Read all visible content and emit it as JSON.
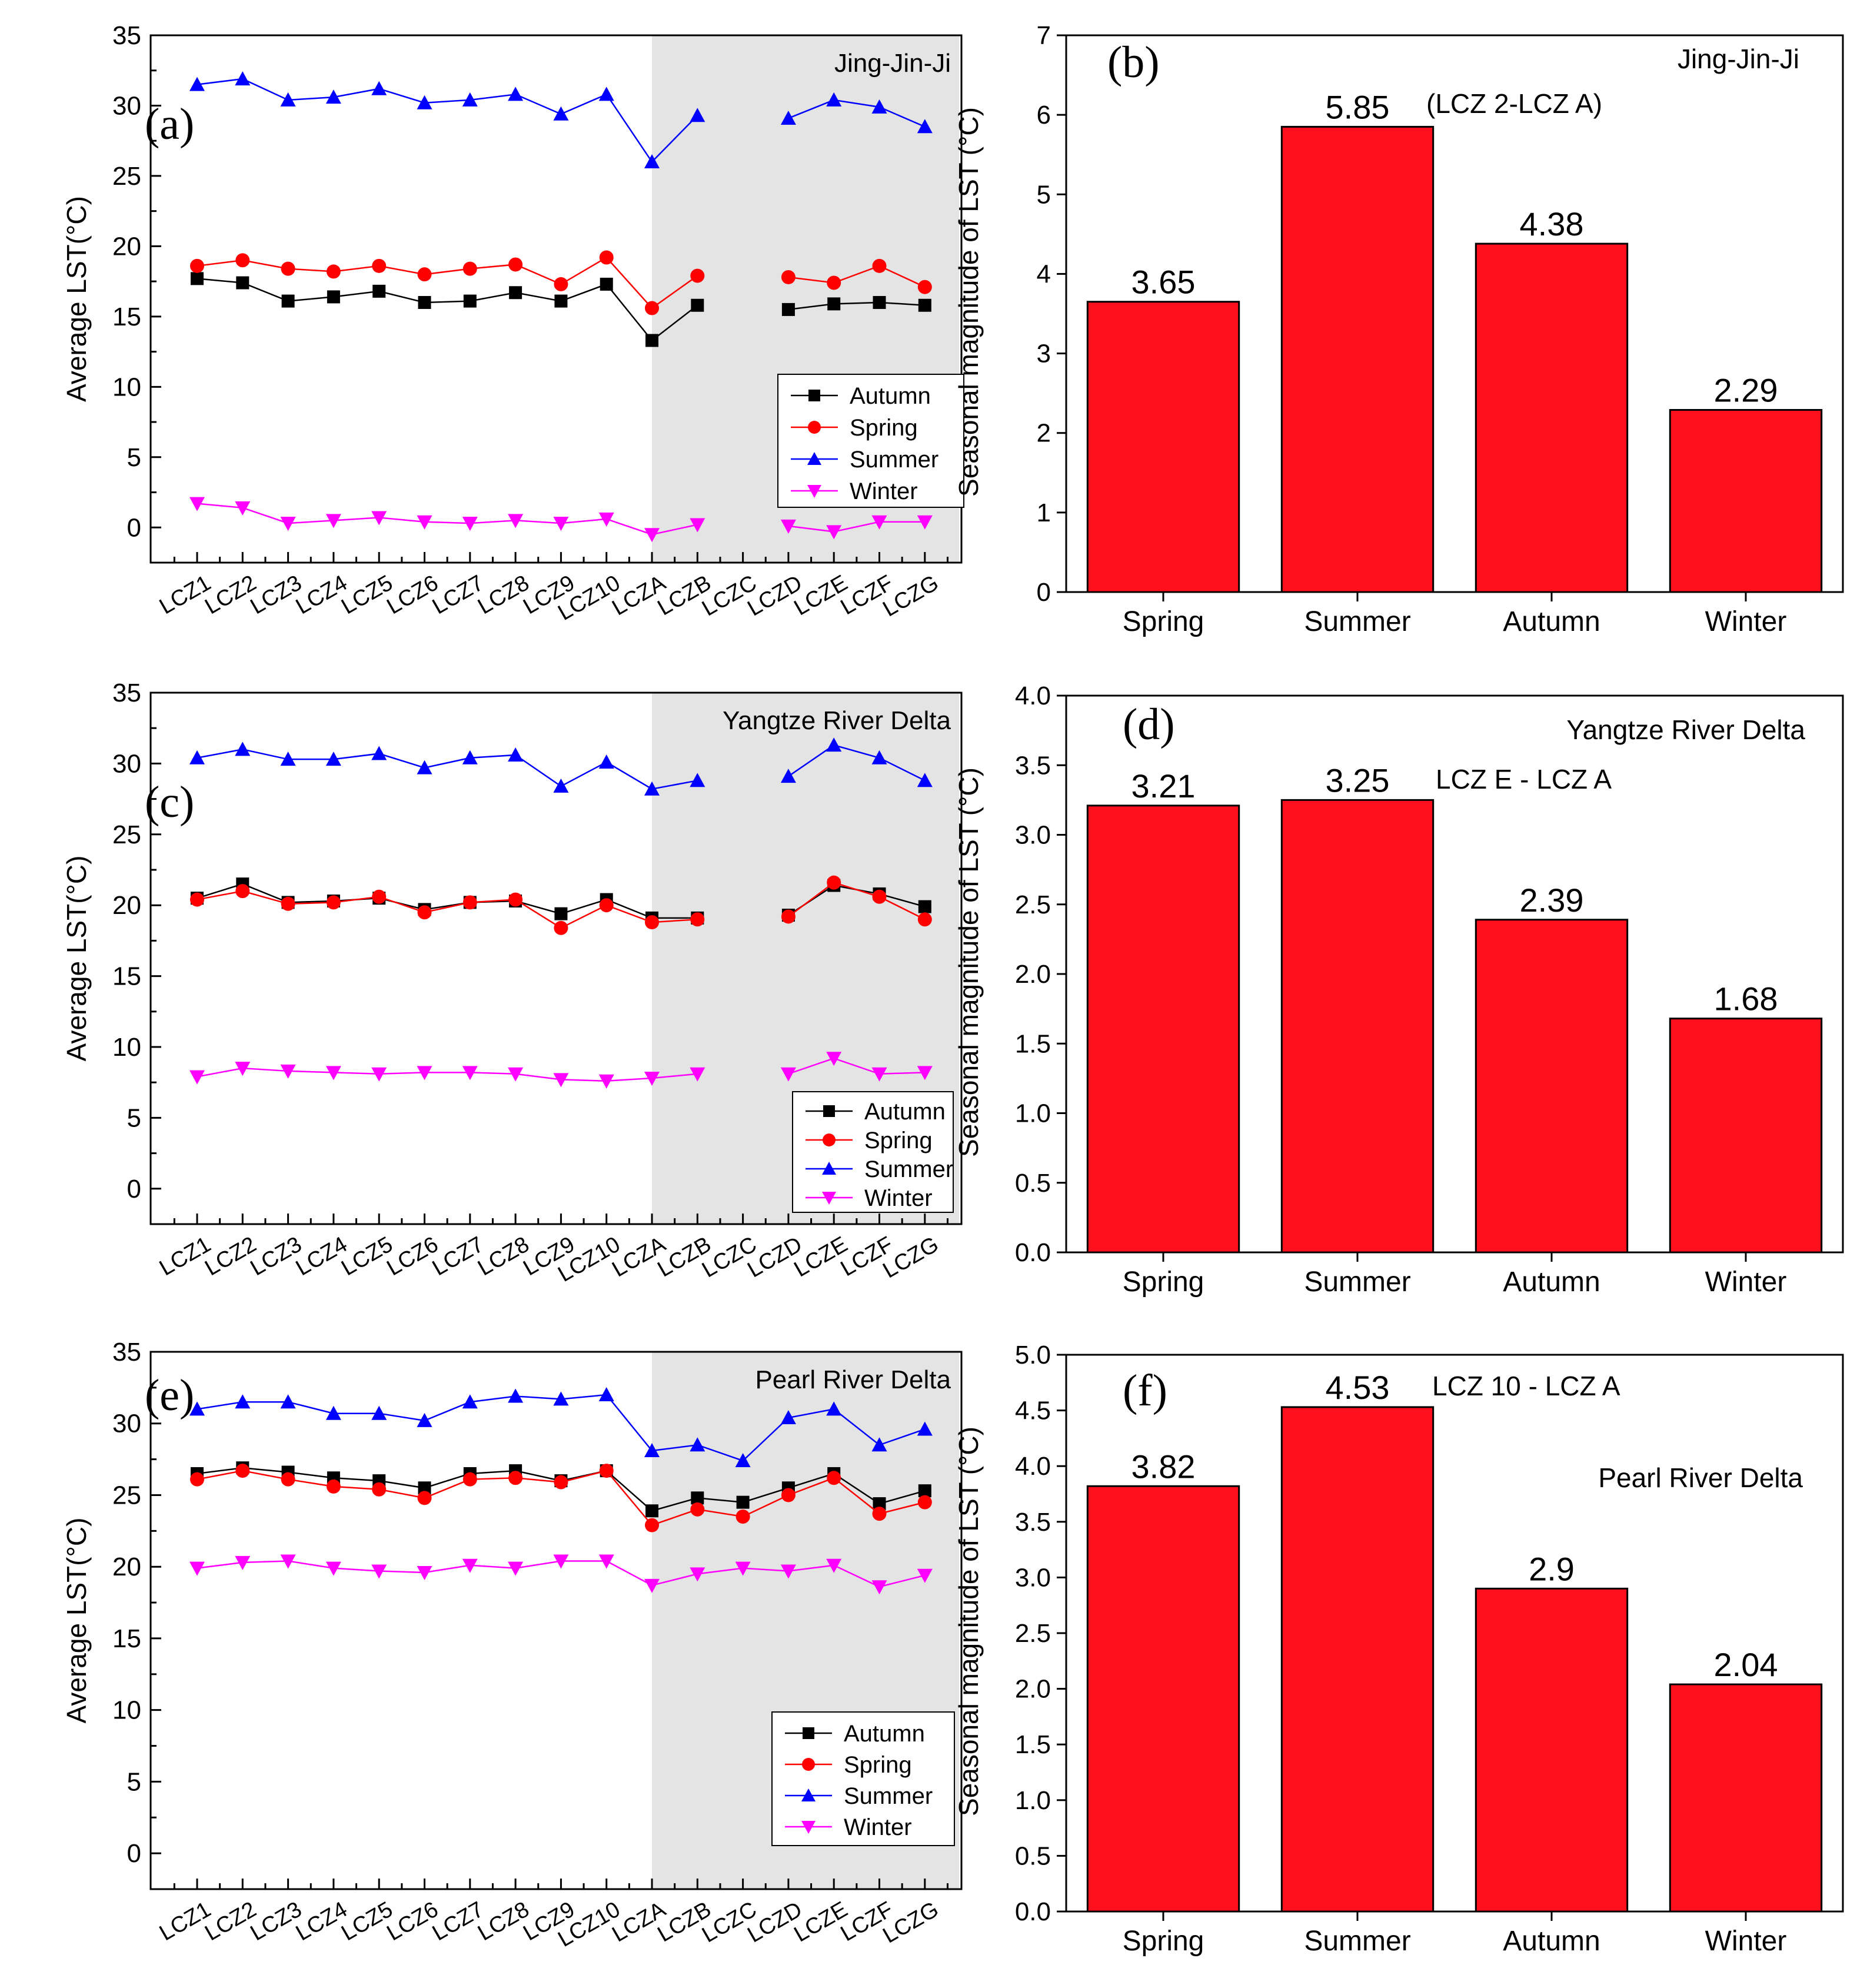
{
  "colors": {
    "autumn": "#000000",
    "spring": "#ff0000",
    "summer": "#0000ff",
    "winter": "#ff00ff",
    "bar": "#ff101c",
    "shade": "#e4e4e4"
  },
  "chart_data": [
    {
      "panel": "(a)",
      "type": "line",
      "title": "Jing-Jin-Ji",
      "xlabel": "",
      "ylabel": "Average LST(°C)",
      "ylim": [
        -2.5,
        35
      ],
      "yticks": [
        "0",
        "5",
        "10",
        "15",
        "20",
        "25",
        "30",
        "35"
      ],
      "categories": [
        "LCZ1",
        "LCZ2",
        "LCZ3",
        "LCZ4",
        "LCZ5",
        "LCZ6",
        "LCZ7",
        "LCZ8",
        "LCZ9",
        "LCZ10",
        "LCZA",
        "LCZB",
        "LCZC",
        "LCZD",
        "LCZE",
        "LCZF",
        "LCZG"
      ],
      "shaded_from": "LCZA",
      "legend": "bottom-right",
      "series": [
        {
          "name": "Autumn",
          "values": [
            17.7,
            17.4,
            16.1,
            16.4,
            16.8,
            16.0,
            16.1,
            16.7,
            16.1,
            17.3,
            13.3,
            15.8,
            null,
            15.5,
            15.9,
            16.0,
            15.8
          ]
        },
        {
          "name": "Spring",
          "values": [
            18.6,
            19.0,
            18.4,
            18.2,
            18.6,
            18.0,
            18.4,
            18.7,
            17.3,
            19.2,
            15.6,
            17.9,
            null,
            17.8,
            17.4,
            18.6,
            17.1
          ]
        },
        {
          "name": "Summer",
          "values": [
            31.5,
            31.9,
            30.4,
            30.6,
            31.2,
            30.2,
            30.4,
            30.8,
            29.4,
            30.8,
            26.0,
            29.3,
            null,
            29.1,
            30.4,
            29.9,
            28.5
          ]
        },
        {
          "name": "Winter",
          "values": [
            1.7,
            1.4,
            0.3,
            0.5,
            0.7,
            0.4,
            0.3,
            0.5,
            0.3,
            0.6,
            -0.5,
            0.2,
            null,
            0.1,
            -0.3,
            0.4,
            0.4
          ]
        }
      ]
    },
    {
      "panel": "(b)",
      "type": "bar",
      "title": "Jing-Jin-Ji",
      "annotation": "(LCZ 2-LCZ A)",
      "xlabel": "",
      "ylabel": "Seasonal magnitude of LST (°C)",
      "ylim": [
        0,
        7
      ],
      "yticks": [
        "0",
        "1",
        "2",
        "3",
        "4",
        "5",
        "6",
        "7"
      ],
      "categories": [
        "Spring",
        "Summer",
        "Autumn",
        "Winter"
      ],
      "values": [
        3.65,
        5.85,
        4.38,
        2.29
      ],
      "labels": [
        "3.65",
        "5.85",
        "4.38",
        "2.29"
      ]
    },
    {
      "panel": "(c)",
      "type": "line",
      "title": "Yangtze River Delta",
      "xlabel": "",
      "ylabel": "Average LST(°C)",
      "ylim": [
        -2.5,
        35
      ],
      "yticks": [
        "0",
        "5",
        "10",
        "15",
        "20",
        "25",
        "30",
        "35"
      ],
      "categories": [
        "LCZ1",
        "LCZ2",
        "LCZ3",
        "LCZ4",
        "LCZ5",
        "LCZ6",
        "LCZ7",
        "LCZ8",
        "LCZ9",
        "LCZ10",
        "LCZA",
        "LCZB",
        "LCZC",
        "LCZD",
        "LCZE",
        "LCZF",
        "LCZG"
      ],
      "shaded_from": "LCZA",
      "legend": "bottom-right",
      "series": [
        {
          "name": "Autumn",
          "values": [
            20.5,
            21.5,
            20.2,
            20.3,
            20.5,
            19.7,
            20.2,
            20.3,
            19.4,
            20.4,
            19.1,
            19.1,
            null,
            19.3,
            21.4,
            20.8,
            19.9
          ]
        },
        {
          "name": "Spring",
          "values": [
            20.4,
            21.0,
            20.1,
            20.2,
            20.6,
            19.5,
            20.2,
            20.4,
            18.4,
            20.0,
            18.8,
            19.0,
            null,
            19.2,
            21.6,
            20.6,
            19.0
          ]
        },
        {
          "name": "Summer",
          "values": [
            30.4,
            31.0,
            30.3,
            30.3,
            30.7,
            29.7,
            30.4,
            30.6,
            28.4,
            30.1,
            28.2,
            28.8,
            null,
            29.1,
            31.3,
            30.4,
            28.8
          ]
        },
        {
          "name": "Winter",
          "values": [
            7.9,
            8.5,
            8.3,
            8.2,
            8.1,
            8.2,
            8.2,
            8.1,
            7.7,
            7.6,
            7.8,
            8.1,
            null,
            8.1,
            9.2,
            8.1,
            8.2
          ]
        }
      ]
    },
    {
      "panel": "(d)",
      "type": "bar",
      "title": "Yangtze River Delta",
      "annotation": "LCZ E - LCZ A",
      "xlabel": "",
      "ylabel": "Seasonal magnitude of LST (°C)",
      "ylim": [
        0,
        4
      ],
      "yticks": [
        "0.0",
        "0.5",
        "1.0",
        "1.5",
        "2.0",
        "2.5",
        "3.0",
        "3.5",
        "4.0"
      ],
      "categories": [
        "Spring",
        "Summer",
        "Autumn",
        "Winter"
      ],
      "values": [
        3.21,
        3.25,
        2.39,
        1.68
      ],
      "labels": [
        "3.21",
        "3.25",
        "2.39",
        "1.68"
      ]
    },
    {
      "panel": "(e)",
      "type": "line",
      "title": "Pearl River Delta",
      "xlabel": "",
      "ylabel": "Average LST(°C)",
      "ylim": [
        -2.5,
        35
      ],
      "yticks": [
        "0",
        "5",
        "10",
        "15",
        "20",
        "25",
        "30",
        "35"
      ],
      "categories": [
        "LCZ1",
        "LCZ2",
        "LCZ3",
        "LCZ4",
        "LCZ5",
        "LCZ6",
        "LCZ7",
        "LCZ8",
        "LCZ9",
        "LCZ10",
        "LCZA",
        "LCZB",
        "LCZC",
        "LCZD",
        "LCZE",
        "LCZF",
        "LCZG"
      ],
      "shaded_from": "LCZA",
      "legend": "bottom-right",
      "series": [
        {
          "name": "Autumn",
          "values": [
            26.5,
            26.9,
            26.6,
            26.2,
            26.0,
            25.5,
            26.5,
            26.7,
            26.0,
            26.7,
            23.9,
            24.8,
            24.5,
            25.5,
            26.5,
            24.4,
            25.3
          ]
        },
        {
          "name": "Spring",
          "values": [
            26.1,
            26.7,
            26.1,
            25.6,
            25.4,
            24.8,
            26.1,
            26.2,
            25.9,
            26.7,
            22.9,
            24.0,
            23.5,
            25.0,
            26.2,
            23.7,
            24.5
          ]
        },
        {
          "name": "Summer",
          "values": [
            31.0,
            31.5,
            31.5,
            30.7,
            30.7,
            30.2,
            31.5,
            31.9,
            31.7,
            32.0,
            28.1,
            28.5,
            27.4,
            30.4,
            31.0,
            28.5,
            29.6
          ]
        },
        {
          "name": "Winter",
          "values": [
            19.9,
            20.3,
            20.4,
            19.9,
            19.7,
            19.6,
            20.1,
            19.9,
            20.4,
            20.4,
            18.7,
            19.5,
            19.9,
            19.7,
            20.1,
            18.6,
            19.4
          ]
        }
      ]
    },
    {
      "panel": "(f)",
      "type": "bar",
      "title": "Pearl River Delta",
      "annotation": "LCZ 10 - LCZ A",
      "xlabel": "",
      "ylabel": "Seasonal magnitude of LST (°C)",
      "ylim": [
        0,
        5
      ],
      "yticks": [
        "0.0",
        "0.5",
        "1.0",
        "1.5",
        "2.0",
        "2.5",
        "3.0",
        "3.5",
        "4.0",
        "4.5",
        "5.0"
      ],
      "categories": [
        "Spring",
        "Summer",
        "Autumn",
        "Winter"
      ],
      "values": [
        3.82,
        4.53,
        2.9,
        2.04
      ],
      "labels": [
        "3.82",
        "4.53",
        "2.9",
        "2.04"
      ]
    }
  ]
}
